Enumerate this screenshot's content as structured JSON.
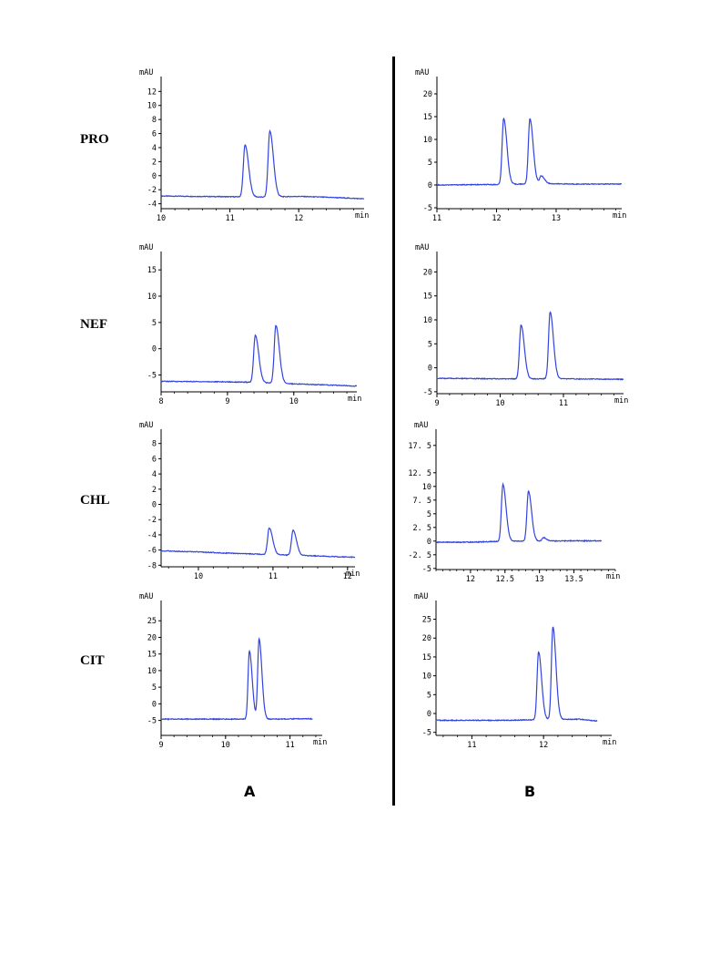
{
  "row_labels": [
    "PRO",
    "NEF",
    "CHL",
    "CIT"
  ],
  "panel_labels": {
    "left": "A",
    "right": "B"
  },
  "colors": {
    "trace": "#3344dd",
    "axis": "#000000",
    "divider": "#000000"
  },
  "chart_data": [
    {
      "id": "PRO-A",
      "type": "line",
      "row": "PRO",
      "panel": "A",
      "ylabel": "mAU",
      "xlabel": "min",
      "xlim": [
        10,
        12.95
      ],
      "xticks": [
        10,
        11,
        12
      ],
      "ylim": [
        -4.7,
        13.6
      ],
      "yticks": [
        -4,
        -2,
        0,
        2,
        4,
        6,
        8,
        10,
        12
      ],
      "baseline": [
        [
          10,
          -2.9
        ],
        [
          10.5,
          -2.95
        ],
        [
          11.0,
          -3.0
        ],
        [
          11.5,
          -3.05
        ],
        [
          12.0,
          -2.95
        ],
        [
          12.5,
          -3.1
        ],
        [
          12.95,
          -3.3
        ]
      ],
      "peaks": [
        {
          "rt": 11.22,
          "height": 7.4
        },
        {
          "rt": 11.58,
          "height": 9.4
        }
      ]
    },
    {
      "id": "PRO-B",
      "type": "line",
      "row": "PRO",
      "panel": "B",
      "ylabel": "mAU",
      "xlabel": "min",
      "xlim": [
        11,
        14.1
      ],
      "xticks": [
        11,
        12,
        13
      ],
      "ylim": [
        -5.2,
        23
      ],
      "yticks": [
        -5,
        0,
        5,
        10,
        15,
        20
      ],
      "baseline": [
        [
          11,
          0
        ],
        [
          12,
          0.1
        ],
        [
          12.8,
          0.3
        ],
        [
          13.3,
          0.2
        ],
        [
          14.1,
          0.2
        ]
      ],
      "peaks": [
        {
          "rt": 12.12,
          "height": 14.5
        },
        {
          "rt": 12.56,
          "height": 14.3
        },
        {
          "rt": 12.75,
          "height": 1.7
        }
      ]
    },
    {
      "id": "NEF-A",
      "type": "line",
      "row": "NEF",
      "panel": "A",
      "ylabel": "mAU",
      "xlabel": "min",
      "xlim": [
        8,
        10.95
      ],
      "xticks": [
        8,
        9,
        10
      ],
      "ylim": [
        -8.2,
        17.8
      ],
      "yticks": [
        -5,
        0,
        5,
        10,
        15
      ],
      "baseline": [
        [
          8,
          -6.2
        ],
        [
          9.0,
          -6.3
        ],
        [
          9.39,
          -6.4
        ],
        [
          9.8,
          -6.6
        ],
        [
          10.3,
          -6.8
        ],
        [
          10.95,
          -7.1
        ]
      ],
      "peaks": [
        {
          "rt": 9.42,
          "height": 9.0
        },
        {
          "rt": 9.73,
          "height": 11.0
        }
      ]
    },
    {
      "id": "NEF-B",
      "type": "line",
      "row": "NEF",
      "panel": "B",
      "ylabel": "mAU",
      "xlabel": "min",
      "xlim": [
        9,
        11.95
      ],
      "xticks": [
        9,
        10,
        11
      ],
      "ylim": [
        -5.4,
        23.5
      ],
      "yticks": [
        -5,
        0,
        5,
        10,
        15,
        20
      ],
      "baseline": [
        [
          9,
          -2.2
        ],
        [
          10.0,
          -2.3
        ],
        [
          10.5,
          -2.3
        ],
        [
          11.0,
          -2.3
        ],
        [
          11.95,
          -2.4
        ]
      ],
      "peaks": [
        {
          "rt": 10.33,
          "height": 11.2
        },
        {
          "rt": 10.79,
          "height": 14.0
        }
      ]
    },
    {
      "id": "CHL-A",
      "type": "line",
      "row": "CHL",
      "panel": "A",
      "ylabel": "mAU",
      "xlabel": "min",
      "xlim": [
        9.5,
        12.1
      ],
      "xticks": [
        10,
        11,
        12
      ],
      "ylim": [
        -8.2,
        9.4
      ],
      "yticks": [
        -8,
        -6,
        -4,
        -2,
        0,
        2,
        4,
        6,
        8
      ],
      "baseline": [
        [
          9.5,
          -6.1
        ],
        [
          10.0,
          -6.25
        ],
        [
          10.5,
          -6.45
        ],
        [
          11.0,
          -6.6
        ],
        [
          11.5,
          -6.75
        ],
        [
          12.1,
          -6.95
        ]
      ],
      "peaks": [
        {
          "rt": 10.95,
          "height": 3.5
        },
        {
          "rt": 11.27,
          "height": 3.3
        }
      ]
    },
    {
      "id": "CHL-B",
      "type": "line",
      "row": "CHL",
      "panel": "B",
      "ylabel": "mAU",
      "xlabel": "min",
      "xlim": [
        11.5,
        14.1
      ],
      "xticks": [
        12,
        12.5,
        13,
        13.5
      ],
      "ylim": [
        -5.2,
        19.8
      ],
      "yticks": [
        -5,
        -2.5,
        0,
        2.5,
        5,
        7.5,
        10,
        12.5,
        17.5
      ],
      "baseline": [
        [
          11.5,
          -0.2
        ],
        [
          12.0,
          -0.2
        ],
        [
          12.6,
          0.0
        ],
        [
          13.0,
          0.0
        ],
        [
          13.5,
          0.05
        ],
        [
          13.9,
          0.05
        ]
      ],
      "peaks": [
        {
          "rt": 12.47,
          "height": 10.4
        },
        {
          "rt": 12.84,
          "height": 9.1
        },
        {
          "rt": 13.06,
          "height": 0.6
        }
      ]
    },
    {
      "id": "CIT-A",
      "type": "line",
      "row": "CIT",
      "panel": "A",
      "ylabel": "mAU",
      "xlabel": "min",
      "xlim": [
        9,
        11.5
      ],
      "xticks": [
        9,
        10,
        11
      ],
      "ylim": [
        -9.5,
        30
      ],
      "yticks": [
        -5,
        0,
        5,
        10,
        15,
        20,
        25
      ],
      "baseline": [
        [
          9,
          -4.6
        ],
        [
          10.0,
          -4.6
        ],
        [
          10.8,
          -4.6
        ],
        [
          11.2,
          -4.5
        ],
        [
          11.35,
          -4.5
        ]
      ],
      "peaks": [
        {
          "rt": 10.37,
          "height": 20.5
        },
        {
          "rt": 10.52,
          "height": 24.1
        }
      ]
    },
    {
      "id": "CIT-B",
      "type": "line",
      "row": "CIT",
      "panel": "B",
      "ylabel": "mAU",
      "xlabel": "min",
      "xlim": [
        10.5,
        12.95
      ],
      "xticks": [
        11,
        12
      ],
      "ylim": [
        -5.8,
        29
      ],
      "yticks": [
        -5,
        0,
        5,
        10,
        15,
        20,
        25
      ],
      "baseline": [
        [
          10.5,
          -1.8
        ],
        [
          11.0,
          -1.8
        ],
        [
          11.5,
          -1.8
        ],
        [
          12.0,
          -1.6
        ],
        [
          12.5,
          -1.5
        ],
        [
          12.75,
          -2.0
        ]
      ],
      "peaks": [
        {
          "rt": 11.93,
          "height": 18.0
        },
        {
          "rt": 12.13,
          "height": 24.5
        }
      ]
    }
  ]
}
